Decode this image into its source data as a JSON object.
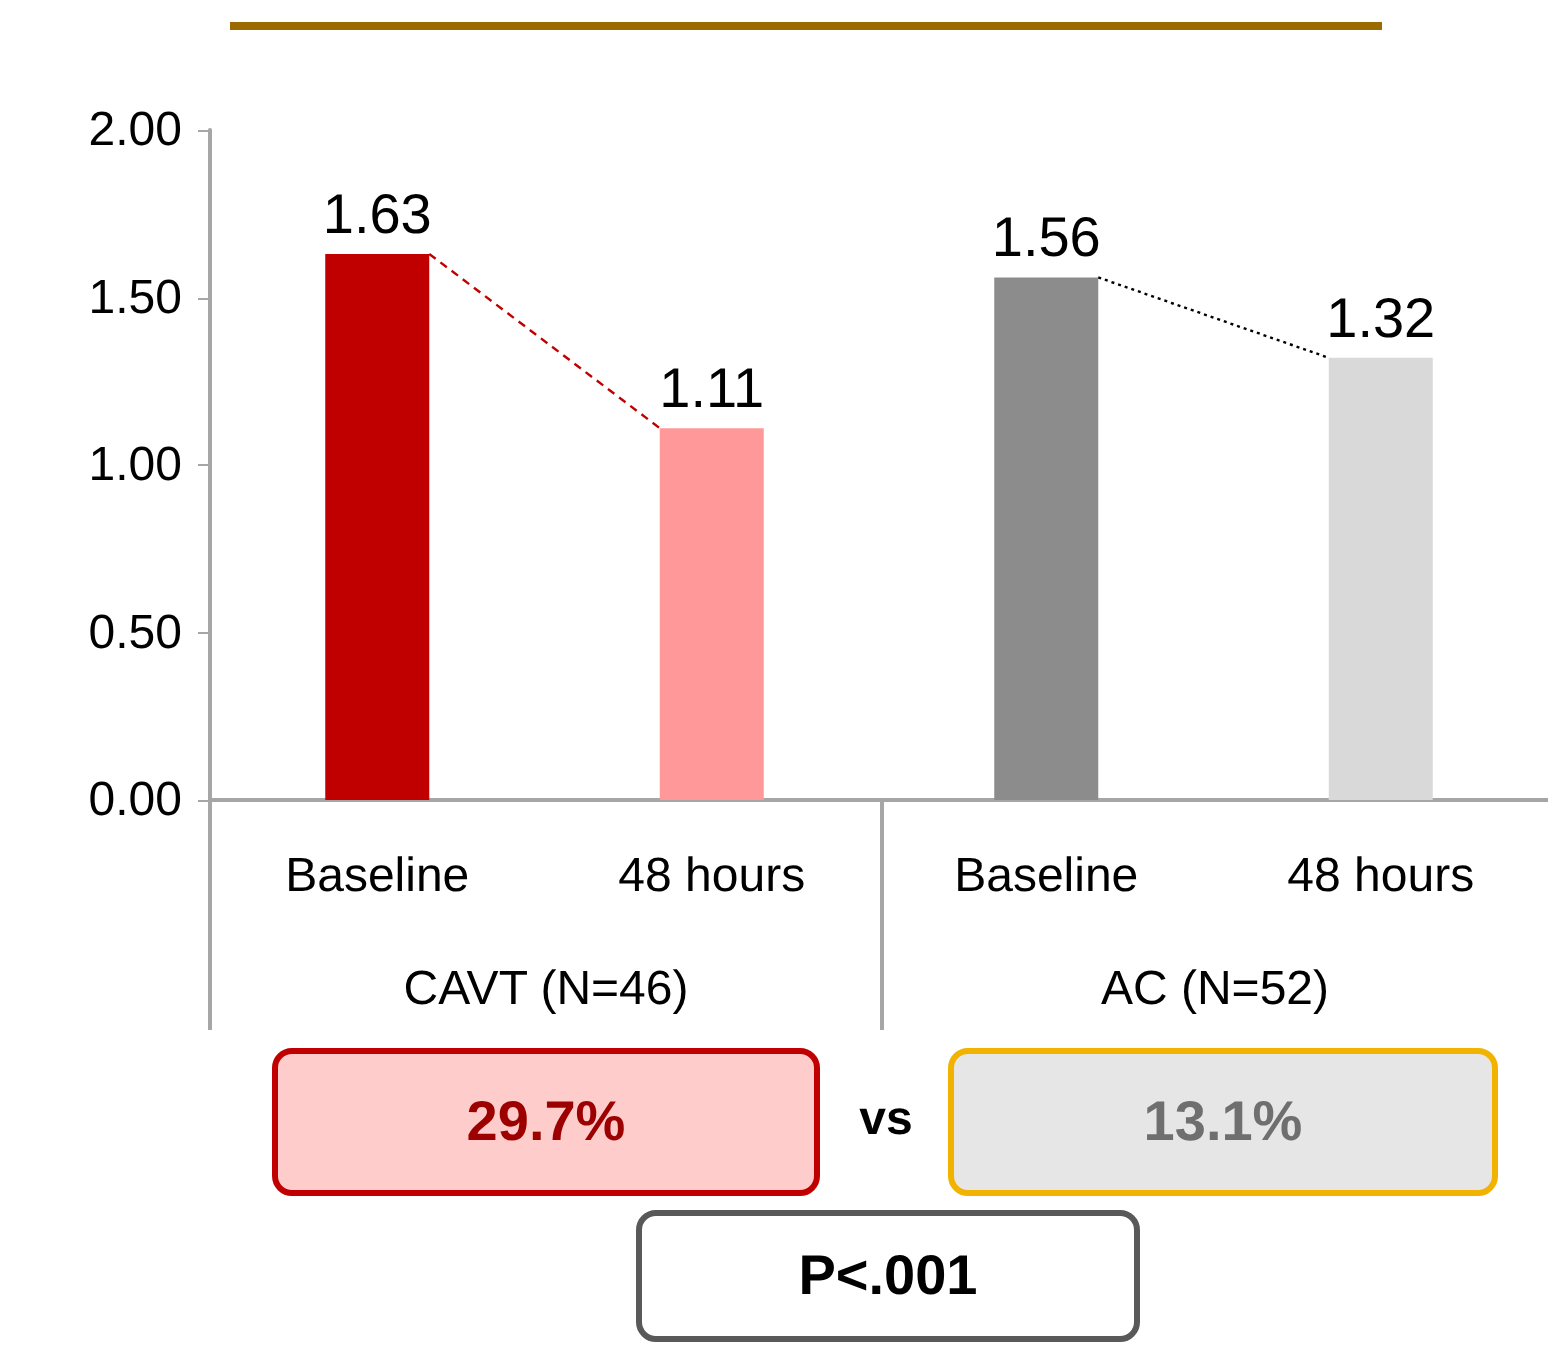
{
  "chart_data": {
    "type": "bar",
    "categories": [
      "Baseline",
      "48 hours",
      "Baseline",
      "48 hours"
    ],
    "colors": [
      "#c00000",
      "#ff9999",
      "#8c8c8c",
      "#d9d9d9"
    ],
    "values": [
      1.63,
      1.11,
      1.56,
      1.32
    ],
    "ylim": [
      0,
      2
    ],
    "yticks": [
      {
        "value": 0,
        "label": "0.00"
      },
      {
        "value": 0.5,
        "label": "0.50"
      },
      {
        "value": 1,
        "label": "1.00"
      },
      {
        "value": 1.5,
        "label": "1.50"
      },
      {
        "value": 2,
        "label": "2.00"
      }
    ],
    "grid": false,
    "data_labels": true,
    "annotations": [
      "CAVT (N=46)",
      "AC (N=52)",
      "29.7%",
      "vs",
      "13.1%",
      "P<.001"
    ]
  }
}
